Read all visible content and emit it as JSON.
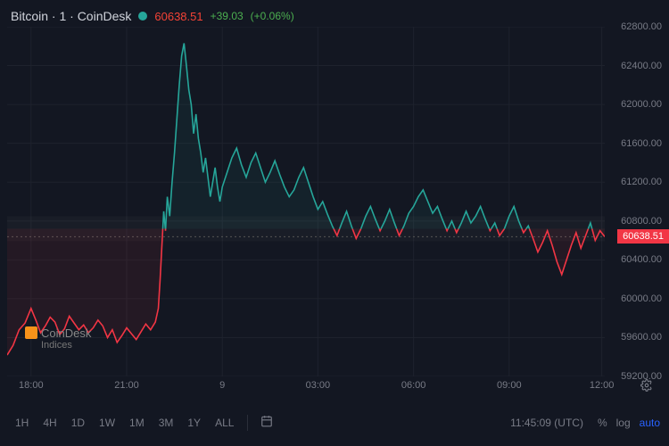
{
  "header": {
    "title": "Bitcoin · 1 · CoinDesk",
    "status_color": "#26a69a",
    "current_price": "60638.51",
    "change_abs": "+39.03",
    "change_pct": "(+0.06%)"
  },
  "watermark": {
    "brand": "CoinDesk",
    "sub": "Indices",
    "icon_color": "#f7931a"
  },
  "chart": {
    "type": "line",
    "background_color": "#131722",
    "grid_color": "#1e222d",
    "up_color": "#26a69a",
    "down_color": "#f23645",
    "reference_price": 60720,
    "current_price": 60638.51,
    "ylim": [
      59200,
      62800
    ],
    "yticks": [
      59200,
      59600,
      60000,
      60400,
      60800,
      61200,
      61600,
      62000,
      62400,
      62800
    ],
    "xticks": [
      {
        "pos": 0.04,
        "label": "18:00"
      },
      {
        "pos": 0.2,
        "label": "21:00"
      },
      {
        "pos": 0.36,
        "label": "9"
      },
      {
        "pos": 0.52,
        "label": "03:00"
      },
      {
        "pos": 0.68,
        "label": "06:00"
      },
      {
        "pos": 0.84,
        "label": "09:00"
      },
      {
        "pos": 0.995,
        "label": "12:00"
      }
    ],
    "series": [
      {
        "x": 0.0,
        "y": 59420
      },
      {
        "x": 0.01,
        "y": 59520
      },
      {
        "x": 0.02,
        "y": 59680
      },
      {
        "x": 0.03,
        "y": 59750
      },
      {
        "x": 0.04,
        "y": 59900
      },
      {
        "x": 0.048,
        "y": 59780
      },
      {
        "x": 0.056,
        "y": 59650
      },
      {
        "x": 0.064,
        "y": 59720
      },
      {
        "x": 0.072,
        "y": 59810
      },
      {
        "x": 0.08,
        "y": 59760
      },
      {
        "x": 0.088,
        "y": 59630
      },
      {
        "x": 0.096,
        "y": 59690
      },
      {
        "x": 0.104,
        "y": 59820
      },
      {
        "x": 0.112,
        "y": 59750
      },
      {
        "x": 0.12,
        "y": 59680
      },
      {
        "x": 0.128,
        "y": 59730
      },
      {
        "x": 0.136,
        "y": 59650
      },
      {
        "x": 0.144,
        "y": 59700
      },
      {
        "x": 0.152,
        "y": 59780
      },
      {
        "x": 0.16,
        "y": 59720
      },
      {
        "x": 0.168,
        "y": 59600
      },
      {
        "x": 0.176,
        "y": 59680
      },
      {
        "x": 0.184,
        "y": 59550
      },
      {
        "x": 0.192,
        "y": 59620
      },
      {
        "x": 0.2,
        "y": 59700
      },
      {
        "x": 0.208,
        "y": 59640
      },
      {
        "x": 0.216,
        "y": 59580
      },
      {
        "x": 0.224,
        "y": 59660
      },
      {
        "x": 0.232,
        "y": 59740
      },
      {
        "x": 0.24,
        "y": 59680
      },
      {
        "x": 0.248,
        "y": 59760
      },
      {
        "x": 0.253,
        "y": 59900
      },
      {
        "x": 0.256,
        "y": 60200
      },
      {
        "x": 0.259,
        "y": 60550
      },
      {
        "x": 0.262,
        "y": 60900
      },
      {
        "x": 0.265,
        "y": 60700
      },
      {
        "x": 0.268,
        "y": 61050
      },
      {
        "x": 0.272,
        "y": 60850
      },
      {
        "x": 0.276,
        "y": 61200
      },
      {
        "x": 0.28,
        "y": 61500
      },
      {
        "x": 0.284,
        "y": 61850
      },
      {
        "x": 0.288,
        "y": 62200
      },
      {
        "x": 0.292,
        "y": 62500
      },
      {
        "x": 0.296,
        "y": 62630
      },
      {
        "x": 0.3,
        "y": 62400
      },
      {
        "x": 0.304,
        "y": 62150
      },
      {
        "x": 0.308,
        "y": 62000
      },
      {
        "x": 0.312,
        "y": 61700
      },
      {
        "x": 0.316,
        "y": 61900
      },
      {
        "x": 0.32,
        "y": 61650
      },
      {
        "x": 0.324,
        "y": 61500
      },
      {
        "x": 0.328,
        "y": 61300
      },
      {
        "x": 0.332,
        "y": 61450
      },
      {
        "x": 0.336,
        "y": 61250
      },
      {
        "x": 0.34,
        "y": 61050
      },
      {
        "x": 0.344,
        "y": 61200
      },
      {
        "x": 0.348,
        "y": 61350
      },
      {
        "x": 0.352,
        "y": 61150
      },
      {
        "x": 0.356,
        "y": 61000
      },
      {
        "x": 0.36,
        "y": 61150
      },
      {
        "x": 0.368,
        "y": 61300
      },
      {
        "x": 0.376,
        "y": 61450
      },
      {
        "x": 0.384,
        "y": 61550
      },
      {
        "x": 0.392,
        "y": 61380
      },
      {
        "x": 0.4,
        "y": 61250
      },
      {
        "x": 0.408,
        "y": 61400
      },
      {
        "x": 0.416,
        "y": 61500
      },
      {
        "x": 0.424,
        "y": 61350
      },
      {
        "x": 0.432,
        "y": 61200
      },
      {
        "x": 0.44,
        "y": 61300
      },
      {
        "x": 0.448,
        "y": 61420
      },
      {
        "x": 0.456,
        "y": 61280
      },
      {
        "x": 0.464,
        "y": 61150
      },
      {
        "x": 0.472,
        "y": 61050
      },
      {
        "x": 0.48,
        "y": 61120
      },
      {
        "x": 0.488,
        "y": 61250
      },
      {
        "x": 0.496,
        "y": 61350
      },
      {
        "x": 0.504,
        "y": 61200
      },
      {
        "x": 0.512,
        "y": 61050
      },
      {
        "x": 0.52,
        "y": 60920
      },
      {
        "x": 0.528,
        "y": 61000
      },
      {
        "x": 0.536,
        "y": 60870
      },
      {
        "x": 0.544,
        "y": 60750
      },
      {
        "x": 0.552,
        "y": 60650
      },
      {
        "x": 0.56,
        "y": 60780
      },
      {
        "x": 0.568,
        "y": 60900
      },
      {
        "x": 0.576,
        "y": 60750
      },
      {
        "x": 0.584,
        "y": 60620
      },
      {
        "x": 0.592,
        "y": 60720
      },
      {
        "x": 0.6,
        "y": 60850
      },
      {
        "x": 0.608,
        "y": 60950
      },
      {
        "x": 0.616,
        "y": 60820
      },
      {
        "x": 0.624,
        "y": 60700
      },
      {
        "x": 0.632,
        "y": 60800
      },
      {
        "x": 0.64,
        "y": 60920
      },
      {
        "x": 0.648,
        "y": 60780
      },
      {
        "x": 0.656,
        "y": 60650
      },
      {
        "x": 0.664,
        "y": 60750
      },
      {
        "x": 0.672,
        "y": 60880
      },
      {
        "x": 0.68,
        "y": 60950
      },
      {
        "x": 0.688,
        "y": 61050
      },
      {
        "x": 0.696,
        "y": 61120
      },
      {
        "x": 0.704,
        "y": 61000
      },
      {
        "x": 0.712,
        "y": 60880
      },
      {
        "x": 0.72,
        "y": 60950
      },
      {
        "x": 0.728,
        "y": 60820
      },
      {
        "x": 0.736,
        "y": 60700
      },
      {
        "x": 0.744,
        "y": 60800
      },
      {
        "x": 0.752,
        "y": 60680
      },
      {
        "x": 0.76,
        "y": 60780
      },
      {
        "x": 0.768,
        "y": 60900
      },
      {
        "x": 0.776,
        "y": 60780
      },
      {
        "x": 0.784,
        "y": 60850
      },
      {
        "x": 0.792,
        "y": 60950
      },
      {
        "x": 0.8,
        "y": 60820
      },
      {
        "x": 0.808,
        "y": 60700
      },
      {
        "x": 0.816,
        "y": 60780
      },
      {
        "x": 0.824,
        "y": 60650
      },
      {
        "x": 0.832,
        "y": 60720
      },
      {
        "x": 0.84,
        "y": 60850
      },
      {
        "x": 0.848,
        "y": 60950
      },
      {
        "x": 0.856,
        "y": 60800
      },
      {
        "x": 0.864,
        "y": 60680
      },
      {
        "x": 0.872,
        "y": 60750
      },
      {
        "x": 0.88,
        "y": 60620
      },
      {
        "x": 0.888,
        "y": 60480
      },
      {
        "x": 0.896,
        "y": 60580
      },
      {
        "x": 0.904,
        "y": 60700
      },
      {
        "x": 0.912,
        "y": 60550
      },
      {
        "x": 0.92,
        "y": 60380
      },
      {
        "x": 0.928,
        "y": 60250
      },
      {
        "x": 0.936,
        "y": 60400
      },
      {
        "x": 0.944,
        "y": 60550
      },
      {
        "x": 0.952,
        "y": 60680
      },
      {
        "x": 0.96,
        "y": 60520
      },
      {
        "x": 0.968,
        "y": 60650
      },
      {
        "x": 0.976,
        "y": 60780
      },
      {
        "x": 0.984,
        "y": 60600
      },
      {
        "x": 0.992,
        "y": 60700
      },
      {
        "x": 1.0,
        "y": 60638
      }
    ]
  },
  "toolbar": {
    "timeframes": [
      "1H",
      "4H",
      "1D",
      "1W",
      "1M",
      "3M",
      "1Y",
      "ALL"
    ],
    "clock": "11:45:09 (UTC)",
    "pct": "%",
    "log": "log",
    "auto": "auto"
  },
  "price_tag": "60638.51"
}
